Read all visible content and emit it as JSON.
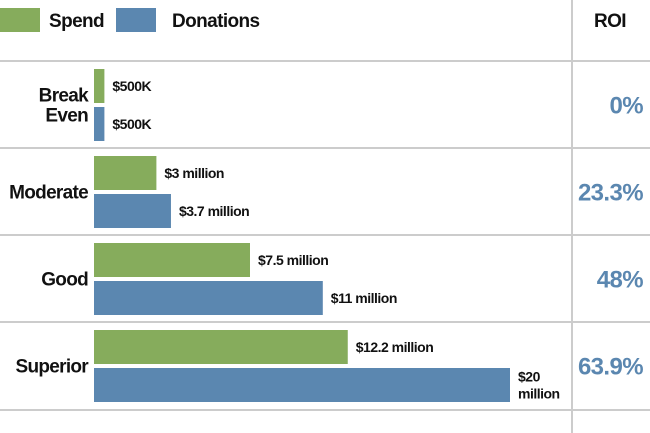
{
  "chart_data": {
    "type": "bar",
    "orientation": "horizontal",
    "legend": {
      "placement": "top-left",
      "items": [
        {
          "name": "Spend",
          "color": "#86ac5c"
        },
        {
          "name": "Donations",
          "color": "#5b87b0"
        }
      ]
    },
    "roi_header": "ROI",
    "units": "$ million",
    "categories": [
      "Break Even",
      "Moderate",
      "Good",
      "Superior"
    ],
    "category_lines": [
      [
        "Break",
        "Even"
      ],
      [
        "Moderate"
      ],
      [
        "Good"
      ],
      [
        "Superior"
      ]
    ],
    "series": [
      {
        "name": "Spend",
        "color": "#86ac5c",
        "values": [
          0.5,
          3,
          7.5,
          12.2
        ],
        "labels": [
          [
            "$500K"
          ],
          [
            "$3 million"
          ],
          [
            "$7.5 million"
          ],
          [
            "$12.2 million"
          ]
        ]
      },
      {
        "name": "Donations",
        "color": "#5b87b0",
        "values": [
          0.5,
          3.7,
          11,
          20
        ],
        "labels": [
          [
            "$500K"
          ],
          [
            "$3.7 million"
          ],
          [
            "$11 million"
          ],
          [
            "$20",
            "million"
          ]
        ]
      }
    ],
    "roi": [
      "0%",
      "23.3%",
      "48%",
      "63.9%"
    ],
    "roi_color": "#5b87b0",
    "grid_color": "#cccccc",
    "xlim": [
      0,
      20
    ]
  }
}
